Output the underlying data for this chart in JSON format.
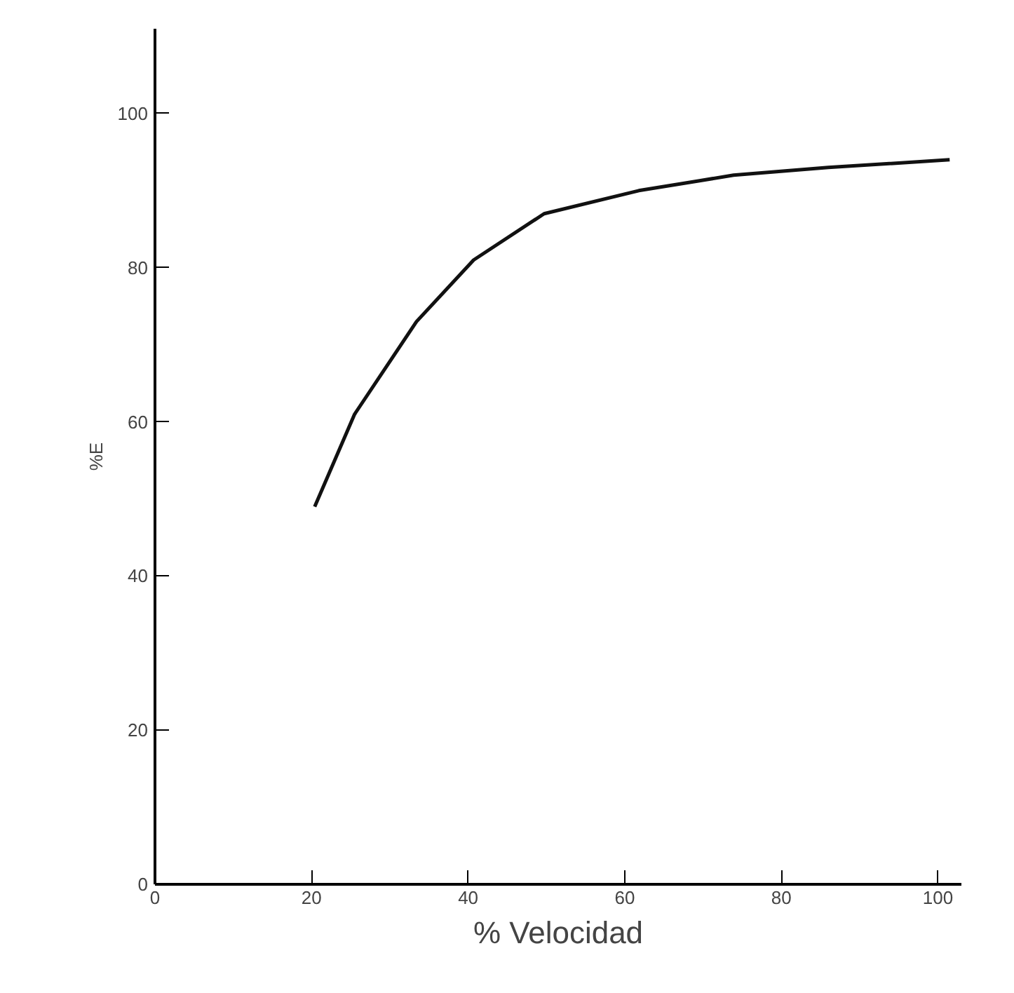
{
  "chart_data": {
    "type": "line",
    "xlabel": "% Velocidad",
    "ylabel": "%E",
    "x": [
      20.4,
      25.5,
      33.4,
      40.7,
      49.7,
      61.8,
      73.9,
      86,
      101.5
    ],
    "series": [
      {
        "color": "#111111",
        "values": [
          49,
          61,
          73,
          81,
          87,
          90,
          92,
          93,
          94
        ]
      }
    ],
    "xlim": [
      0,
      103
    ],
    "ylim": [
      0,
      111
    ],
    "xticks": [
      0,
      20,
      40,
      60,
      80,
      100
    ],
    "yticks": [
      0,
      20,
      40,
      60,
      80,
      100
    ],
    "grid": false,
    "marker": "none",
    "line_style": "solid"
  }
}
